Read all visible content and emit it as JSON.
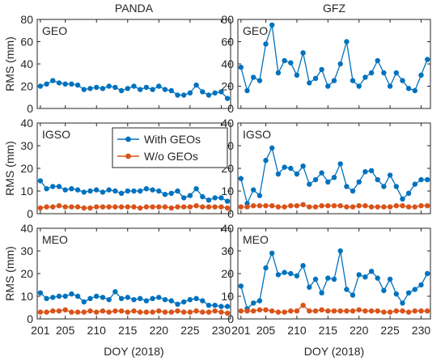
{
  "figure": {
    "column_titles": [
      "PANDA",
      "GFZ"
    ],
    "legend": [
      "With GEOs",
      "W/o GEOs"
    ]
  },
  "chart_data": [
    {
      "type": "line",
      "column": "PANDA",
      "panel_label": "GEO",
      "xlabel": "",
      "ylabel": "RMS (mm)",
      "ylim": [
        0,
        80
      ],
      "yticks": [
        0,
        20,
        40,
        60,
        80
      ],
      "xlim": [
        200.5,
        231.5
      ],
      "xticks": [
        201,
        205,
        210,
        215,
        220,
        225,
        230
      ],
      "x": [
        201,
        202,
        203,
        204,
        205,
        206,
        207,
        208,
        209,
        210,
        211,
        212,
        213,
        214,
        215,
        216,
        217,
        218,
        219,
        220,
        221,
        222,
        223,
        224,
        225,
        226,
        227,
        228,
        229,
        230,
        231
      ],
      "series": [
        {
          "name": "With GEOs",
          "color": "#0072BD",
          "values": [
            20,
            22,
            25,
            23,
            22,
            22,
            21,
            17,
            18,
            19,
            18,
            20,
            19,
            16,
            18,
            20,
            17,
            19,
            17,
            20,
            17,
            16,
            12,
            12,
            14,
            21,
            15,
            12,
            14,
            15,
            9
          ]
        }
      ]
    },
    {
      "type": "line",
      "column": "GFZ",
      "panel_label": "GEO",
      "xlabel": "",
      "ylabel": "",
      "ylim": [
        0,
        80
      ],
      "yticks": [
        0,
        20,
        40,
        60,
        80
      ],
      "xlim": [
        200.5,
        231.5
      ],
      "xticks": [
        201,
        205,
        210,
        215,
        220,
        225,
        230
      ],
      "x": [
        201,
        202,
        203,
        204,
        205,
        206,
        207,
        208,
        209,
        210,
        211,
        212,
        213,
        214,
        215,
        216,
        217,
        218,
        219,
        220,
        221,
        222,
        223,
        224,
        225,
        226,
        227,
        228,
        229,
        230,
        231
      ],
      "series": [
        {
          "name": "With GEOs",
          "color": "#0072BD",
          "values": [
            37,
            16,
            28,
            25,
            58,
            75,
            32,
            43,
            41,
            30,
            50,
            23,
            27,
            35,
            20,
            25,
            40,
            60,
            25,
            20,
            28,
            32,
            43,
            32,
            20,
            32,
            25,
            18,
            16,
            30,
            44
          ]
        }
      ]
    },
    {
      "type": "line",
      "column": "PANDA",
      "panel_label": "IGSO",
      "xlabel": "",
      "ylabel": "RMS (mm)",
      "ylim": [
        0,
        40
      ],
      "yticks": [
        0,
        10,
        20,
        30,
        40
      ],
      "xlim": [
        200.5,
        231.5
      ],
      "xticks": [
        201,
        205,
        210,
        215,
        220,
        225,
        230
      ],
      "x": [
        201,
        202,
        203,
        204,
        205,
        206,
        207,
        208,
        209,
        210,
        211,
        212,
        213,
        214,
        215,
        216,
        217,
        218,
        219,
        220,
        221,
        222,
        223,
        224,
        225,
        226,
        227,
        228,
        229,
        230,
        231
      ],
      "series": [
        {
          "name": "With GEOs",
          "color": "#0072BD",
          "values": [
            14.5,
            11,
            12,
            12,
            10.5,
            11,
            10.5,
            9.5,
            10,
            10.5,
            9.5,
            10.5,
            10,
            9,
            10,
            10,
            10,
            11,
            10.5,
            10,
            8.5,
            9,
            10,
            7,
            8,
            11,
            7.5,
            6,
            7,
            7,
            5.5
          ]
        },
        {
          "name": "W/o GEOs",
          "color": "#D95319",
          "values": [
            2.5,
            3,
            3,
            3.5,
            3,
            3,
            3,
            2.5,
            2.5,
            3,
            3,
            3,
            3,
            3,
            3,
            3,
            2.5,
            3,
            3,
            3,
            3,
            2.5,
            3,
            3,
            3,
            3.5,
            3,
            3,
            3,
            3,
            2.5
          ]
        }
      ]
    },
    {
      "type": "line",
      "column": "GFZ",
      "panel_label": "IGSO",
      "xlabel": "",
      "ylabel": "",
      "ylim": [
        0,
        40
      ],
      "yticks": [
        0,
        10,
        20,
        30,
        40
      ],
      "xlim": [
        200.5,
        231.5
      ],
      "xticks": [
        201,
        205,
        210,
        215,
        220,
        225,
        230
      ],
      "x": [
        201,
        202,
        203,
        204,
        205,
        206,
        207,
        208,
        209,
        210,
        211,
        212,
        213,
        214,
        215,
        216,
        217,
        218,
        219,
        220,
        221,
        222,
        223,
        224,
        225,
        226,
        227,
        228,
        229,
        230,
        231
      ],
      "series": [
        {
          "name": "With GEOs",
          "color": "#0072BD",
          "values": [
            15.5,
            4.5,
            10.5,
            8,
            23.5,
            29,
            17.5,
            20.5,
            20,
            17.5,
            21,
            13,
            15,
            18,
            14,
            16,
            22,
            12,
            10,
            14,
            18.5,
            19,
            15,
            12,
            17,
            12,
            6.5,
            9,
            13,
            15,
            15
          ]
        },
        {
          "name": "W/o GEOs",
          "color": "#D95319",
          "values": [
            3,
            3,
            3.5,
            3.5,
            3.5,
            3.5,
            3,
            3,
            3.5,
            3.5,
            4,
            3,
            3,
            3.5,
            3.5,
            3.5,
            3.5,
            3,
            3,
            3.5,
            3.5,
            3,
            3,
            3,
            3,
            3.5,
            3.5,
            3,
            3,
            3.5,
            3.5
          ]
        }
      ]
    },
    {
      "type": "line",
      "column": "PANDA",
      "panel_label": "MEO",
      "xlabel": "DOY (2018)",
      "ylabel": "RMS (mm)",
      "ylim": [
        0,
        40
      ],
      "yticks": [
        0,
        10,
        20,
        30,
        40
      ],
      "xlim": [
        200.5,
        231.5
      ],
      "xticks": [
        201,
        205,
        210,
        215,
        220,
        225,
        230
      ],
      "x": [
        201,
        202,
        203,
        204,
        205,
        206,
        207,
        208,
        209,
        210,
        211,
        212,
        213,
        214,
        215,
        216,
        217,
        218,
        219,
        220,
        221,
        222,
        223,
        224,
        225,
        226,
        227,
        228,
        229,
        230,
        231
      ],
      "series": [
        {
          "name": "With GEOs",
          "color": "#0072BD",
          "values": [
            11.5,
            9,
            9.5,
            10,
            10,
            11,
            10,
            7.5,
            9,
            10,
            9.5,
            8.5,
            12,
            9,
            9.5,
            8.5,
            9,
            8,
            9,
            9.5,
            8.5,
            8,
            6.5,
            7.5,
            8.5,
            9,
            8,
            6,
            6,
            5.5,
            5.5
          ]
        },
        {
          "name": "W/o GEOs",
          "color": "#D95319",
          "values": [
            3,
            3,
            3.5,
            3.5,
            4,
            3,
            3,
            3,
            3.5,
            3,
            3.5,
            3,
            3.5,
            3.5,
            3,
            3.5,
            3,
            3,
            3,
            3.5,
            3,
            3,
            3.5,
            3,
            3,
            3.5,
            3,
            3,
            3.5,
            3,
            2.5
          ]
        }
      ]
    },
    {
      "type": "line",
      "column": "GFZ",
      "panel_label": "MEO",
      "xlabel": "DOY (2018)",
      "ylabel": "",
      "ylim": [
        0,
        40
      ],
      "yticks": [
        0,
        10,
        20,
        30,
        40
      ],
      "xlim": [
        200.5,
        231.5
      ],
      "xticks": [
        201,
        205,
        210,
        215,
        220,
        225,
        230
      ],
      "x": [
        201,
        202,
        203,
        204,
        205,
        206,
        207,
        208,
        209,
        210,
        211,
        212,
        213,
        214,
        215,
        216,
        217,
        218,
        219,
        220,
        221,
        222,
        223,
        224,
        225,
        226,
        227,
        228,
        229,
        230,
        231
      ],
      "series": [
        {
          "name": "With GEOs",
          "color": "#0072BD",
          "values": [
            14.5,
            4.5,
            7,
            8,
            22.5,
            29,
            19.5,
            20.5,
            20,
            19,
            23.5,
            14,
            17.5,
            11.5,
            18,
            17.5,
            30,
            13,
            10.5,
            19.5,
            18.5,
            21,
            18,
            12.5,
            17.5,
            11,
            7,
            11.5,
            13,
            15,
            20
          ]
        },
        {
          "name": "W/o GEOs",
          "color": "#D95319",
          "values": [
            3.5,
            3.5,
            3.5,
            4,
            4,
            3.5,
            3,
            3,
            3.5,
            3.5,
            6,
            3.5,
            3.5,
            4,
            3.5,
            3.5,
            3.5,
            3.5,
            3.5,
            4,
            3.5,
            3.5,
            3.5,
            3,
            3,
            3.5,
            3.5,
            3,
            3.5,
            3.5,
            3.5
          ]
        }
      ]
    }
  ]
}
